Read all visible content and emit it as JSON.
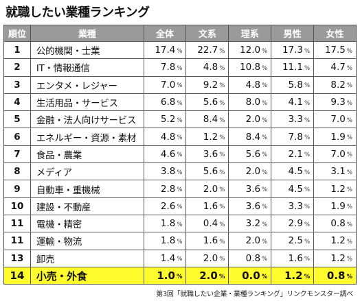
{
  "title": "就職したい業種ランキング",
  "source": "第3回「就職したい企業・業種ランキング」リンクモンスター調べ",
  "colors": {
    "header_bg": "#9a9a9a",
    "highlight_bg": "#fffb2c"
  },
  "chart_data": {
    "type": "table",
    "headers": [
      "順位",
      "業種",
      "全体",
      "文系",
      "理系",
      "男性",
      "女性"
    ],
    "unit": "%",
    "highlight_row": 13,
    "rows": [
      {
        "rank": "1",
        "industry": "公的機関・士業",
        "values": [
          "17.4",
          "22.7",
          "12.0",
          "17.3",
          "17.5"
        ]
      },
      {
        "rank": "2",
        "industry": "IT・情報通信",
        "values": [
          "7.8",
          "4.8",
          "10.8",
          "11.1",
          "4.7"
        ]
      },
      {
        "rank": "3",
        "industry": "エンタメ・レジャー",
        "values": [
          "7.0",
          "9.2",
          "4.8",
          "5.8",
          "8.2"
        ]
      },
      {
        "rank": "4",
        "industry": "生活用品・サービス",
        "values": [
          "6.8",
          "5.6",
          "8.0",
          "4.1",
          "9.3"
        ]
      },
      {
        "rank": "5",
        "industry": "金融・法人向けサービス",
        "values": [
          "5.2",
          "8.4",
          "2.0",
          "3.3",
          "7.0"
        ]
      },
      {
        "rank": "6",
        "industry": "エネルギー・資源・素材",
        "values": [
          "4.8",
          "1.2",
          "8.4",
          "7.8",
          "1.9"
        ]
      },
      {
        "rank": "7",
        "industry": "食品・農業",
        "values": [
          "4.6",
          "3.6",
          "5.6",
          "2.1",
          "7.0"
        ]
      },
      {
        "rank": "8",
        "industry": "メディア",
        "values": [
          "3.8",
          "5.6",
          "2.0",
          "4.5",
          "3.1"
        ]
      },
      {
        "rank": "9",
        "industry": "自動車・重機械",
        "values": [
          "2.8",
          "2.0",
          "3.6",
          "4.5",
          "1.2"
        ]
      },
      {
        "rank": "10",
        "industry": "建設・不動産",
        "values": [
          "2.6",
          "1.6",
          "3.6",
          "3.3",
          "1.9"
        ]
      },
      {
        "rank": "11",
        "industry": "電機・精密",
        "values": [
          "1.8",
          "0.4",
          "3.2",
          "2.9",
          "0.8"
        ]
      },
      {
        "rank": "11",
        "industry": "運輸・物流",
        "values": [
          "1.8",
          "1.6",
          "2.0",
          "2.5",
          "1.2"
        ]
      },
      {
        "rank": "13",
        "industry": "卸売",
        "values": [
          "1.4",
          "2.0",
          "0.8",
          "1.6",
          "1.2"
        ]
      },
      {
        "rank": "14",
        "industry": "小売・外食",
        "values": [
          "1.0",
          "2.0",
          "0.0",
          "1.2",
          "0.8"
        ]
      }
    ]
  }
}
